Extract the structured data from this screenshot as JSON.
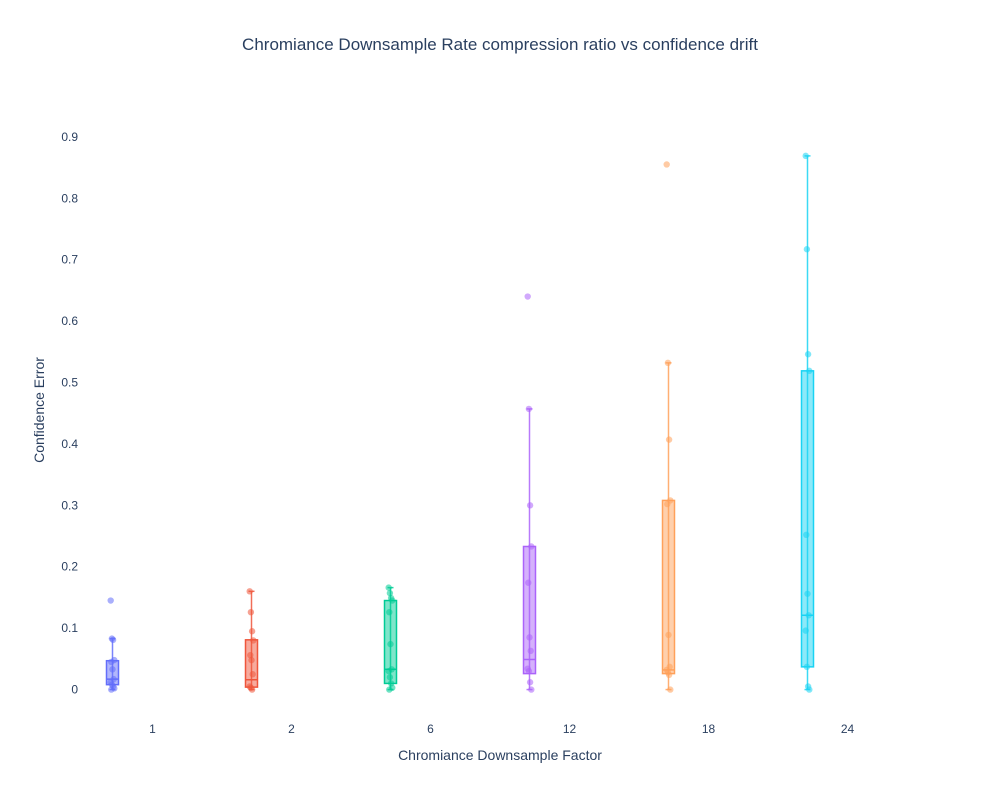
{
  "chart_data": {
    "type": "box",
    "title": "Chromiance Downsample Rate compression ratio vs confidence drift",
    "xlabel": "Chromiance Downsample Factor",
    "ylabel": "Confidence Error",
    "categories": [
      "1",
      "2",
      "6",
      "12",
      "18",
      "24"
    ],
    "ylim": [
      -0.03,
      0.96
    ],
    "yticks": [
      0,
      0.1,
      0.2,
      0.3,
      0.4,
      0.5,
      0.6,
      0.7,
      0.8,
      0.9
    ],
    "ytick_labels": [
      "0",
      "0.1",
      "0.2",
      "0.3",
      "0.4",
      "0.5",
      "0.6",
      "0.7",
      "0.8",
      "0.9"
    ],
    "grid": false,
    "legend": "none",
    "series": [
      {
        "category": "1",
        "color": "#636efa",
        "box": {
          "lowerfence": 0.0,
          "q1": 0.008,
          "median": 0.017,
          "q3": 0.047,
          "upperfence": 0.083
        },
        "points": [
          0.145,
          0.083,
          0.081,
          0.048,
          0.045,
          0.033,
          0.017,
          0.012,
          0.008,
          0.005,
          0.002,
          0.0
        ]
      },
      {
        "category": "2",
        "color": "#ef553b",
        "box": {
          "lowerfence": 0.0,
          "q1": 0.004,
          "median": 0.016,
          "q3": 0.081,
          "upperfence": 0.16
        },
        "points": [
          0.16,
          0.126,
          0.095,
          0.08,
          0.056,
          0.048,
          0.025,
          0.005,
          0.003,
          0.0
        ]
      },
      {
        "category": "6",
        "color": "#00cc96",
        "box": {
          "lowerfence": 0.0,
          "q1": 0.01,
          "median": 0.033,
          "q3": 0.145,
          "upperfence": 0.166
        },
        "points": [
          0.166,
          0.157,
          0.149,
          0.145,
          0.126,
          0.074,
          0.033,
          0.03,
          0.02,
          0.01,
          0.003,
          0.0
        ]
      },
      {
        "category": "12",
        "color": "#ab63fa",
        "box": {
          "lowerfence": 0.0,
          "q1": 0.026,
          "median": 0.049,
          "q3": 0.233,
          "upperfence": 0.457
        },
        "points": [
          0.64,
          0.457,
          0.3,
          0.233,
          0.174,
          0.085,
          0.063,
          0.034,
          0.03,
          0.012,
          0.0
        ]
      },
      {
        "category": "18",
        "color": "#ffa15a",
        "box": {
          "lowerfence": 0.0,
          "q1": 0.026,
          "median": 0.032,
          "q3": 0.308,
          "upperfence": 0.532
        },
        "points": [
          0.855,
          0.532,
          0.407,
          0.308,
          0.302,
          0.089,
          0.037,
          0.032,
          0.028,
          0.024,
          0.0
        ]
      },
      {
        "category": "24",
        "color": "#19d3f3",
        "box": {
          "lowerfence": 0.0,
          "q1": 0.037,
          "median": 0.121,
          "q3": 0.519,
          "upperfence": 0.869
        },
        "points": [
          0.869,
          0.717,
          0.546,
          0.519,
          0.252,
          0.156,
          0.121,
          0.096,
          0.037,
          0.005,
          0.0
        ]
      }
    ]
  }
}
